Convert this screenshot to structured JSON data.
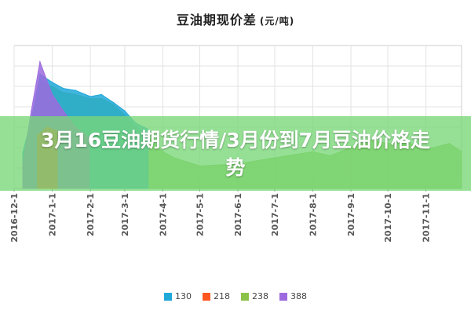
{
  "banner": {
    "headline": "3月16豆油期货行情/3月份到7月豆油价格走势"
  },
  "chart_data": {
    "type": "area",
    "title": "豆油期现价差",
    "title_unit": "(元/吨)",
    "x_tick_labels": [
      "2016-12-1",
      "2017-1-1",
      "2017-2-1",
      "2017-3-1",
      "2017-4-1",
      "2017-5-1",
      "2017-6-1",
      "2017-7-1",
      "2017-8-1",
      "2017-9-1",
      "2017-10-1",
      "2017-11-1"
    ],
    "x_range": [
      "2016-12-01",
      "2017-11-30"
    ],
    "grid": true,
    "legend_position": "bottom",
    "series": [
      {
        "name": "130",
        "color": "#1fa8d8",
        "points": [
          [
            "2016-12-08",
            175
          ],
          [
            "2016-12-15",
            340
          ],
          [
            "2016-12-22",
            560
          ],
          [
            "2017-01-01",
            520
          ],
          [
            "2017-01-10",
            490
          ],
          [
            "2017-01-20",
            480
          ],
          [
            "2017-02-01",
            450
          ],
          [
            "2017-02-10",
            460
          ],
          [
            "2017-02-20",
            420
          ],
          [
            "2017-03-01",
            380
          ],
          [
            "2017-03-10",
            320
          ],
          [
            "2017-03-20",
            290
          ]
        ]
      },
      {
        "name": "218",
        "color": "#ff5722",
        "points": [
          [
            "2016-12-20",
            260
          ],
          [
            "2016-12-28",
            300
          ],
          [
            "2017-01-05",
            280
          ]
        ]
      },
      {
        "name": "238",
        "color": "#8bc34a",
        "points": [
          [
            "2016-12-08",
            150
          ],
          [
            "2016-12-15",
            300
          ],
          [
            "2016-12-22",
            520
          ],
          [
            "2017-01-01",
            500
          ],
          [
            "2017-01-10",
            470
          ],
          [
            "2017-01-20",
            460
          ],
          [
            "2017-02-01",
            440
          ],
          [
            "2017-02-10",
            440
          ],
          [
            "2017-02-20",
            410
          ],
          [
            "2017-03-01",
            360
          ],
          [
            "2017-03-10",
            300
          ],
          [
            "2017-03-20",
            250
          ],
          [
            "2017-04-01",
            180
          ],
          [
            "2017-04-10",
            150
          ],
          [
            "2017-05-01",
            110
          ],
          [
            "2017-06-01",
            120
          ],
          [
            "2017-07-01",
            150
          ],
          [
            "2017-08-01",
            180
          ],
          [
            "2017-08-15",
            160
          ],
          [
            "2017-09-01",
            200
          ],
          [
            "2017-09-15",
            240
          ],
          [
            "2017-10-01",
            220
          ],
          [
            "2017-10-15",
            230
          ],
          [
            "2017-11-01",
            190
          ],
          [
            "2017-11-20",
            220
          ],
          [
            "2017-11-30",
            180
          ]
        ]
      },
      {
        "name": "388",
        "color": "#9c6ade",
        "points": [
          [
            "2016-12-08",
            120
          ],
          [
            "2016-12-15",
            380
          ],
          [
            "2016-12-22",
            620
          ],
          [
            "2017-01-01",
            460
          ],
          [
            "2017-01-10",
            380
          ],
          [
            "2017-01-20",
            300
          ],
          [
            "2017-01-31",
            250
          ]
        ]
      }
    ]
  }
}
